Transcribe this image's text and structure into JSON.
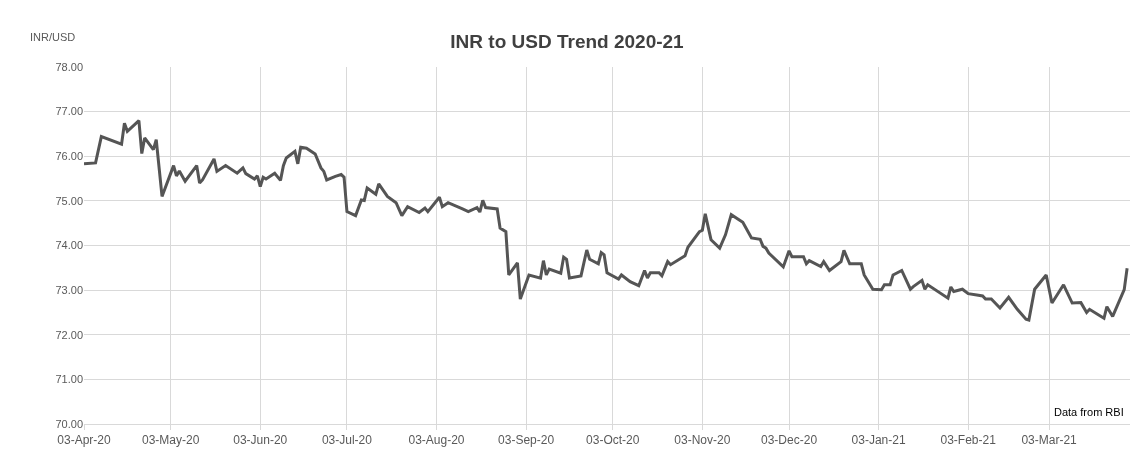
{
  "chart_data": {
    "type": "line",
    "title": "INR to USD Trend 2020-21",
    "ylabel": "INR/USD",
    "annotations": [
      "Data from RBI"
    ],
    "x": [
      "2020-04-03",
      "2020-04-07",
      "2020-04-09",
      "2020-04-16",
      "2020-04-17",
      "2020-04-18",
      "2020-04-22",
      "2020-04-23",
      "2020-04-24",
      "2020-04-27",
      "2020-04-28",
      "2020-04-30",
      "2020-05-04",
      "2020-05-05",
      "2020-05-06",
      "2020-05-08",
      "2020-05-12",
      "2020-05-13",
      "2020-05-14",
      "2020-05-18",
      "2020-05-19",
      "2020-05-22",
      "2020-05-26",
      "2020-05-28",
      "2020-05-29",
      "2020-06-01",
      "2020-06-02",
      "2020-06-03",
      "2020-06-04",
      "2020-06-05",
      "2020-06-08",
      "2020-06-10",
      "2020-06-11",
      "2020-06-12",
      "2020-06-15",
      "2020-06-16",
      "2020-06-17",
      "2020-06-19",
      "2020-06-22",
      "2020-06-24",
      "2020-06-25",
      "2020-06-26",
      "2020-06-29",
      "2020-07-01",
      "2020-07-02",
      "2020-07-03",
      "2020-07-06",
      "2020-07-08",
      "2020-07-09",
      "2020-07-10",
      "2020-07-13",
      "2020-07-14",
      "2020-07-17",
      "2020-07-20",
      "2020-07-22",
      "2020-07-24",
      "2020-07-28",
      "2020-07-30",
      "2020-07-31",
      "2020-08-04",
      "2020-08-05",
      "2020-08-07",
      "2020-08-12",
      "2020-08-14",
      "2020-08-17",
      "2020-08-18",
      "2020-08-19",
      "2020-08-20",
      "2020-08-24",
      "2020-08-25",
      "2020-08-27",
      "2020-08-28",
      "2020-08-31",
      "2020-09-01",
      "2020-09-04",
      "2020-09-08",
      "2020-09-09",
      "2020-09-10",
      "2020-09-11",
      "2020-09-15",
      "2020-09-16",
      "2020-09-17",
      "2020-09-18",
      "2020-09-22",
      "2020-09-24",
      "2020-09-25",
      "2020-09-28",
      "2020-09-29",
      "2020-09-30",
      "2020-10-01",
      "2020-10-05",
      "2020-10-06",
      "2020-10-09",
      "2020-10-12",
      "2020-10-14",
      "2020-10-15",
      "2020-10-16",
      "2020-10-19",
      "2020-10-20",
      "2020-10-22",
      "2020-10-23",
      "2020-10-28",
      "2020-10-29",
      "2020-11-02",
      "2020-11-03",
      "2020-11-04",
      "2020-11-06",
      "2020-11-09",
      "2020-11-11",
      "2020-11-13",
      "2020-11-17",
      "2020-11-20",
      "2020-11-23",
      "2020-11-24",
      "2020-11-25",
      "2020-11-26",
      "2020-12-01",
      "2020-12-03",
      "2020-12-04",
      "2020-12-08",
      "2020-12-09",
      "2020-12-10",
      "2020-12-14",
      "2020-12-15",
      "2020-12-17",
      "2020-12-21",
      "2020-12-22",
      "2020-12-24",
      "2020-12-28",
      "2020-12-29",
      "2021-01-01",
      "2021-01-04",
      "2021-01-05",
      "2021-01-07",
      "2021-01-08",
      "2021-01-11",
      "2021-01-14",
      "2021-01-15",
      "2021-01-18",
      "2021-01-19",
      "2021-01-20",
      "2021-01-27",
      "2021-01-28",
      "2021-01-29",
      "2021-02-01",
      "2021-02-03",
      "2021-02-06",
      "2021-02-08",
      "2021-02-09",
      "2021-02-11",
      "2021-02-14",
      "2021-02-17",
      "2021-02-20",
      "2021-02-23",
      "2021-02-24",
      "2021-02-26",
      "2021-03-02",
      "2021-03-04",
      "2021-03-08",
      "2021-03-11",
      "2021-03-14",
      "2021-03-16",
      "2021-03-17",
      "2021-03-21",
      "2021-03-22",
      "2021-03-23",
      "2021-03-25",
      "2021-03-29",
      "2021-03-30"
    ],
    "series": [
      {
        "color": "#555555",
        "values": [
          75.83,
          75.85,
          76.44,
          76.27,
          76.74,
          76.56,
          76.8,
          76.06,
          76.41,
          76.15,
          76.37,
          75.1,
          75.79,
          75.56,
          75.67,
          75.44,
          75.79,
          75.4,
          75.47,
          75.94,
          75.66,
          75.79,
          75.62,
          75.74,
          75.61,
          75.49,
          75.56,
          75.32,
          75.53,
          75.49,
          75.62,
          75.46,
          75.79,
          75.96,
          76.11,
          75.83,
          76.2,
          76.18,
          76.05,
          75.74,
          75.66,
          75.47,
          75.55,
          75.59,
          75.53,
          74.76,
          74.67,
          75.02,
          75.01,
          75.29,
          75.15,
          75.38,
          75.1,
          74.96,
          74.67,
          74.87,
          74.74,
          74.84,
          74.76,
          75.08,
          74.87,
          74.96,
          74.82,
          74.76,
          74.85,
          74.75,
          75.01,
          74.85,
          74.82,
          74.39,
          74.31,
          73.34,
          73.61,
          72.8,
          73.34,
          73.27,
          73.66,
          73.34,
          73.47,
          73.38,
          73.74,
          73.69,
          73.27,
          73.32,
          73.9,
          73.69,
          73.59,
          73.84,
          73.79,
          73.39,
          73.25,
          73.34,
          73.19,
          73.1,
          73.44,
          73.27,
          73.39,
          73.39,
          73.32,
          73.64,
          73.57,
          73.77,
          73.96,
          74.31,
          74.34,
          74.71,
          74.13,
          73.94,
          74.24,
          74.69,
          74.52,
          74.17,
          74.14,
          73.98,
          73.94,
          73.83,
          73.52,
          73.88,
          73.75,
          73.75,
          73.59,
          73.66,
          73.53,
          73.64,
          73.44,
          73.64,
          73.89,
          73.59,
          73.59,
          73.34,
          73.02,
          73.01,
          73.12,
          73.12,
          73.34,
          73.44,
          73.02,
          73.08,
          73.22,
          73.02,
          73.12,
          72.82,
          73.07,
          72.97,
          73.02,
          72.92,
          72.89,
          72.87,
          72.8,
          72.8,
          72.6,
          72.84,
          72.57,
          72.35,
          72.33,
          73.02,
          73.34,
          72.71,
          73.12,
          72.71,
          72.72,
          72.5,
          72.57,
          72.41,
          72.37,
          72.63,
          72.41,
          73.01,
          73.49
        ]
      }
    ],
    "xlim": [
      "2020-04-03",
      "2021-03-31"
    ],
    "xticks": [
      {
        "value": "2020-04-03",
        "label": "03-Apr-20"
      },
      {
        "value": "2020-05-03",
        "label": "03-May-20"
      },
      {
        "value": "2020-06-03",
        "label": "03-Jun-20"
      },
      {
        "value": "2020-07-03",
        "label": "03-Jul-20"
      },
      {
        "value": "2020-08-03",
        "label": "03-Aug-20"
      },
      {
        "value": "2020-09-03",
        "label": "03-Sep-20"
      },
      {
        "value": "2020-10-03",
        "label": "03-Oct-20"
      },
      {
        "value": "2020-11-03",
        "label": "03-Nov-20"
      },
      {
        "value": "2020-12-03",
        "label": "03-Dec-20"
      },
      {
        "value": "2021-01-03",
        "label": "03-Jan-21"
      },
      {
        "value": "2021-02-03",
        "label": "03-Feb-21"
      },
      {
        "value": "2021-03-03",
        "label": "03-Mar-21"
      }
    ],
    "ylim": [
      70,
      78
    ],
    "yticks": [
      {
        "value": 70,
        "label": "70.00"
      },
      {
        "value": 71,
        "label": "71.00"
      },
      {
        "value": 72,
        "label": "72.00"
      },
      {
        "value": 73,
        "label": "73.00"
      },
      {
        "value": 74,
        "label": "74.00"
      },
      {
        "value": 75,
        "label": "75.00"
      },
      {
        "value": 76,
        "label": "76.00"
      },
      {
        "value": 77,
        "label": "77.00"
      },
      {
        "value": 78,
        "label": "78.00"
      }
    ],
    "grid": true
  }
}
